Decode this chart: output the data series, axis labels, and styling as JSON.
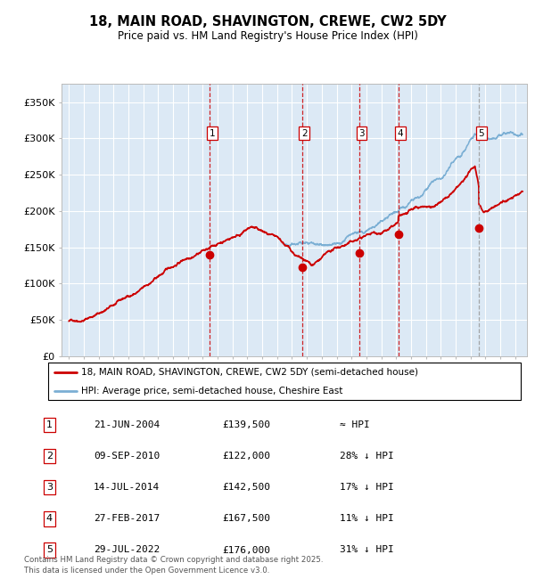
{
  "title": "18, MAIN ROAD, SHAVINGTON, CREWE, CW2 5DY",
  "subtitle": "Price paid vs. HM Land Registry's House Price Index (HPI)",
  "ylabel_ticks": [
    "£0",
    "£50K",
    "£100K",
    "£150K",
    "£200K",
    "£250K",
    "£300K",
    "£350K"
  ],
  "ytick_values": [
    0,
    50000,
    100000,
    150000,
    200000,
    250000,
    300000,
    350000
  ],
  "ylim": [
    0,
    375000
  ],
  "xlim_start": 1994.5,
  "xlim_end": 2025.8,
  "background_color": "#ffffff",
  "plot_bg_color": "#dce9f5",
  "grid_color": "#ffffff",
  "legend_label_red": "18, MAIN ROAD, SHAVINGTON, CREWE, CW2 5DY (semi-detached house)",
  "legend_label_blue": "HPI: Average price, semi-detached house, Cheshire East",
  "red_color": "#cc0000",
  "blue_color": "#7bafd4",
  "sale_markers": [
    {
      "label": "1",
      "date_year": 2004.47,
      "price": 139500,
      "vline_style": "red_dashed"
    },
    {
      "label": "2",
      "date_year": 2010.68,
      "price": 122000,
      "vline_style": "red_dashed"
    },
    {
      "label": "3",
      "date_year": 2014.53,
      "price": 142500,
      "vline_style": "red_dashed"
    },
    {
      "label": "4",
      "date_year": 2017.15,
      "price": 167500,
      "vline_style": "red_dashed"
    },
    {
      "label": "5",
      "date_year": 2022.57,
      "price": 176000,
      "vline_style": "grey_dashed"
    }
  ],
  "table_rows": [
    {
      "num": "1",
      "date": "21-JUN-2004",
      "price": "£139,500",
      "vs_hpi": "≈ HPI"
    },
    {
      "num": "2",
      "date": "09-SEP-2010",
      "price": "£122,000",
      "vs_hpi": "28% ↓ HPI"
    },
    {
      "num": "3",
      "date": "14-JUL-2014",
      "price": "£142,500",
      "vs_hpi": "17% ↓ HPI"
    },
    {
      "num": "4",
      "date": "27-FEB-2017",
      "price": "£167,500",
      "vs_hpi": "11% ↓ HPI"
    },
    {
      "num": "5",
      "date": "29-JUL-2022",
      "price": "£176,000",
      "vs_hpi": "31% ↓ HPI"
    }
  ],
  "footer": "Contains HM Land Registry data © Crown copyright and database right 2025.\nThis data is licensed under the Open Government Licence v3.0."
}
